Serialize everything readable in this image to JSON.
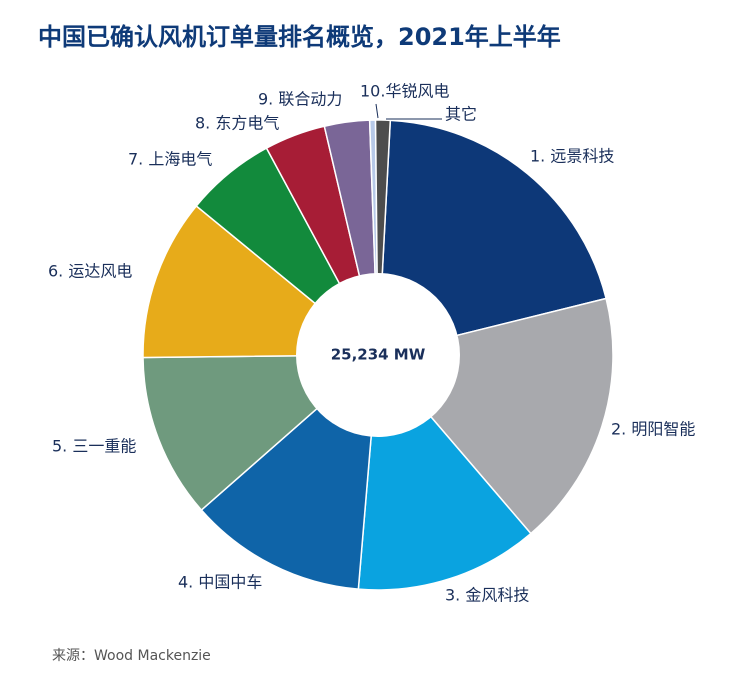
{
  "chart_data": {
    "type": "donut",
    "title": "中国已确认风机订单量排名概览，2021年上半年",
    "center_label": "25,234 MW",
    "categories": [
      "1. 远景科技",
      "2. 明阳智能",
      "3. 金风科技",
      "4. 中国中车",
      "5. 三一重能",
      "6. 运达风电",
      "7. 上海电气",
      "8. 东方电气",
      "9. 联合动力",
      "10.华锐风电",
      "其它"
    ],
    "values": [
      20.3,
      17.6,
      12.6,
      12.2,
      11.3,
      11.1,
      6.2,
      4.2,
      3.1,
      0.4,
      1.0
    ],
    "colors": [
      "#0d3878",
      "#a8a9ad",
      "#0aa3e0",
      "#0f64a8",
      "#6f9a7e",
      "#e7ab1a",
      "#128a3c",
      "#a71d36",
      "#7a6697",
      "#b7c9e8",
      "#4d4d4d"
    ],
    "source": "来源：Wood Mackenzie"
  }
}
